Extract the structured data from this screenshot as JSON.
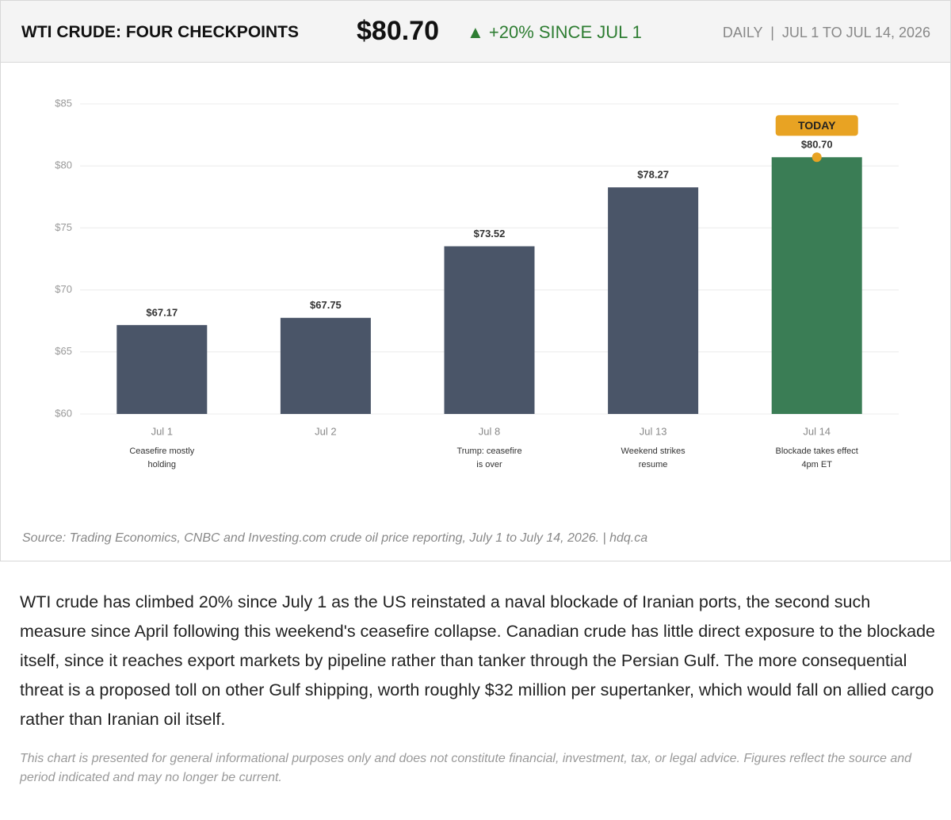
{
  "header": {
    "title": "WTI CRUDE: FOUR CHECKPOINTS",
    "price": "$80.70",
    "change": "▲ +20% SINCE JUL 1",
    "meta": "DAILY  |  JUL 1 TO JUL 14, 2026"
  },
  "chart_data": {
    "type": "bar",
    "categories": [
      "Jul 1",
      "Jul 2",
      "Jul 8",
      "Jul 13",
      "Jul 14"
    ],
    "values": [
      67.17,
      67.75,
      73.52,
      78.27,
      80.7
    ],
    "value_labels": [
      "$67.17",
      "$67.75",
      "$73.52",
      "$78.27",
      "$80.70"
    ],
    "notes": [
      [
        "Ceasefire mostly",
        "holding"
      ],
      null,
      [
        "Trump: ceasefire",
        "is over"
      ],
      [
        "Weekend strikes",
        "resume"
      ],
      [
        "Blockade takes effect",
        "4pm ET"
      ]
    ],
    "color": "#4a5568",
    "highlight": {
      "category": "Jul 14",
      "label": "TODAY",
      "color": "#3a7d55",
      "badge_color": "#e8a323"
    },
    "ylim": [
      60,
      85
    ],
    "yticks": [
      {
        "value": 60,
        "label": "$60"
      },
      {
        "value": 65,
        "label": "$65"
      },
      {
        "value": 70,
        "label": "$70"
      },
      {
        "value": 75,
        "label": "$75"
      },
      {
        "value": 80,
        "label": "$80"
      },
      {
        "value": 85,
        "label": "$85"
      }
    ],
    "grid": true
  },
  "source": "Source: Trading Economics, CNBC and Investing.com crude oil price reporting, July 1 to July 14, 2026.  |  hdq.ca",
  "body": "WTI crude has climbed 20% since July 1 as the US reinstated a naval blockade of Iranian ports, the second such measure since April following this weekend's ceasefire collapse. Canadian crude has little direct exposure to the blockade itself, since it reaches export markets by pipeline rather than tanker through the Persian Gulf. The more consequential threat is a proposed toll on other Gulf shipping, worth roughly $32 million per supertanker, which would fall on allied cargo rather than Iranian oil itself.",
  "disclaimer": "This chart is presented for general informational purposes only and does not constitute financial, investment, tax, or legal advice. Figures reflect the source and period indicated and may no longer be current."
}
